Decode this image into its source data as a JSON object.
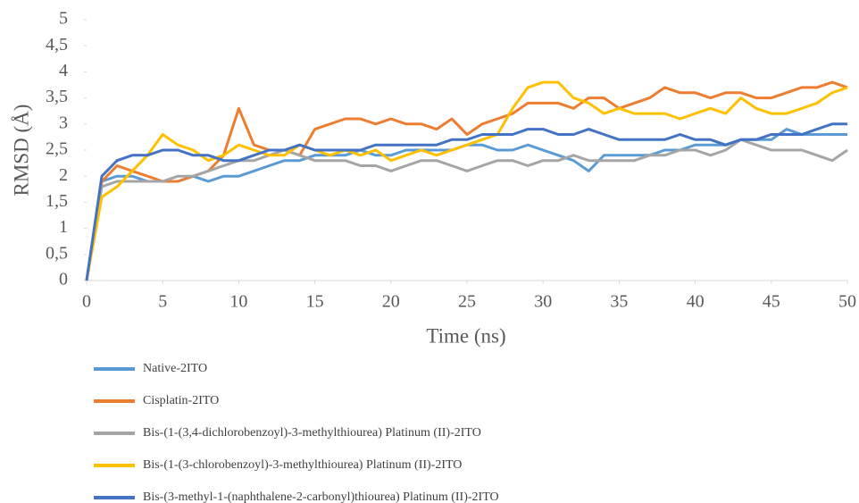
{
  "chart_data": {
    "type": "line",
    "x_label": "Time (ns)",
    "y_label": "RMSD (Å)",
    "xlim": [
      0,
      50
    ],
    "xticks": [
      0,
      5,
      10,
      15,
      20,
      25,
      30,
      35,
      40,
      45,
      50
    ],
    "ylim": [
      0,
      5
    ],
    "yticks": [
      0,
      {
        "value": 0.5,
        "label": "0,5"
      },
      1,
      {
        "value": 1.5,
        "label": "1,5"
      },
      2,
      {
        "value": 2.5,
        "label": "2,5"
      },
      3,
      {
        "value": 3.5,
        "label": "3,5"
      },
      4,
      {
        "value": 4.5,
        "label": "4,5"
      },
      5
    ],
    "grid": false,
    "legend": "bottom",
    "x": [
      0,
      1,
      2,
      3,
      4,
      5,
      6,
      7,
      8,
      9,
      10,
      11,
      12,
      13,
      14,
      15,
      16,
      17,
      18,
      19,
      20,
      21,
      22,
      23,
      24,
      25,
      26,
      27,
      28,
      29,
      30,
      31,
      32,
      33,
      34,
      35,
      36,
      37,
      38,
      39,
      40,
      41,
      42,
      43,
      44,
      45,
      46,
      47,
      48,
      49,
      50
    ],
    "series": [
      {
        "name": "Native-2ITO",
        "color": "#5b9bd5",
        "values": [
          0,
          1.9,
          2.0,
          2.0,
          1.9,
          1.9,
          1.9,
          2.0,
          1.9,
          2.0,
          2.0,
          2.1,
          2.2,
          2.3,
          2.3,
          2.4,
          2.4,
          2.4,
          2.5,
          2.4,
          2.4,
          2.5,
          2.5,
          2.5,
          2.5,
          2.6,
          2.6,
          2.5,
          2.5,
          2.6,
          2.5,
          2.4,
          2.3,
          2.1,
          2.4,
          2.4,
          2.4,
          2.4,
          2.5,
          2.5,
          2.6,
          2.6,
          2.6,
          2.7,
          2.7,
          2.7,
          2.9,
          2.8,
          2.8,
          2.8,
          2.8
        ]
      },
      {
        "name": "Cisplatin-2ITO",
        "color": "#ed7d31",
        "values": [
          0,
          1.9,
          2.2,
          2.1,
          2.0,
          1.9,
          1.9,
          2.0,
          2.1,
          2.4,
          3.3,
          2.6,
          2.5,
          2.5,
          2.4,
          2.9,
          3.0,
          3.1,
          3.1,
          3.0,
          3.1,
          3.0,
          3.0,
          2.9,
          3.1,
          2.8,
          3.0,
          3.1,
          3.2,
          3.4,
          3.4,
          3.4,
          3.3,
          3.5,
          3.5,
          3.3,
          3.4,
          3.5,
          3.7,
          3.6,
          3.6,
          3.5,
          3.6,
          3.6,
          3.5,
          3.5,
          3.6,
          3.7,
          3.7,
          3.8,
          3.7
        ]
      },
      {
        "name": "Bis-(1-(3,4-dichlorobenzoyl)-3-methylthiourea) Platinum (II)-2ITO",
        "color": "#a5a5a5",
        "values": [
          0,
          1.8,
          1.9,
          1.9,
          1.9,
          1.9,
          2.0,
          2.0,
          2.1,
          2.2,
          2.3,
          2.3,
          2.4,
          2.5,
          2.4,
          2.3,
          2.3,
          2.3,
          2.2,
          2.2,
          2.1,
          2.2,
          2.3,
          2.3,
          2.2,
          2.1,
          2.2,
          2.3,
          2.3,
          2.2,
          2.3,
          2.3,
          2.4,
          2.3,
          2.3,
          2.3,
          2.3,
          2.4,
          2.4,
          2.5,
          2.5,
          2.4,
          2.5,
          2.7,
          2.6,
          2.5,
          2.5,
          2.5,
          2.4,
          2.3,
          2.5
        ]
      },
      {
        "name": "Bis-(1-(3-chlorobenzoyl)-3-methylthiourea) Platinum (II)-2ITO",
        "color": "#ffc000",
        "values": [
          0,
          1.6,
          1.8,
          2.1,
          2.4,
          2.8,
          2.6,
          2.5,
          2.3,
          2.4,
          2.6,
          2.5,
          2.4,
          2.4,
          2.6,
          2.5,
          2.4,
          2.5,
          2.4,
          2.5,
          2.3,
          2.4,
          2.5,
          2.4,
          2.5,
          2.6,
          2.7,
          2.8,
          3.3,
          3.7,
          3.8,
          3.8,
          3.5,
          3.4,
          3.2,
          3.3,
          3.2,
          3.2,
          3.2,
          3.1,
          3.2,
          3.3,
          3.2,
          3.5,
          3.3,
          3.2,
          3.2,
          3.3,
          3.4,
          3.6,
          3.7
        ]
      },
      {
        "name": "Bis-(3-methyl-1-(naphthalene-2-carbonyl)thiourea) Platinum (II)-2ITO",
        "color": "#4472c4",
        "values": [
          0,
          2.0,
          2.3,
          2.4,
          2.4,
          2.5,
          2.5,
          2.4,
          2.4,
          2.3,
          2.3,
          2.4,
          2.5,
          2.5,
          2.6,
          2.5,
          2.5,
          2.5,
          2.5,
          2.6,
          2.6,
          2.6,
          2.6,
          2.6,
          2.7,
          2.7,
          2.8,
          2.8,
          2.8,
          2.9,
          2.9,
          2.8,
          2.8,
          2.9,
          2.8,
          2.7,
          2.7,
          2.7,
          2.7,
          2.8,
          2.7,
          2.7,
          2.6,
          2.7,
          2.7,
          2.8,
          2.8,
          2.8,
          2.9,
          3.0,
          3.0
        ]
      }
    ]
  }
}
